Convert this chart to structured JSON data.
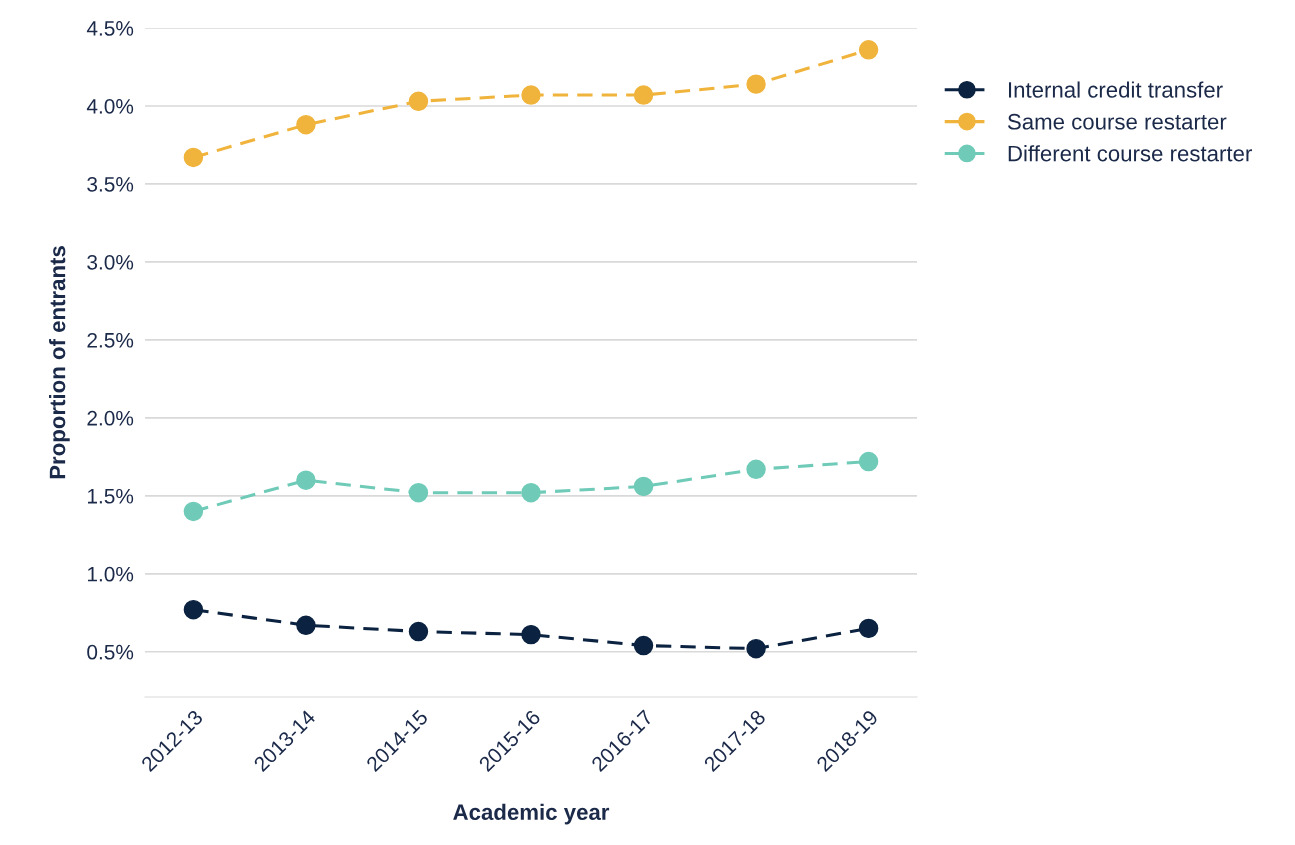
{
  "chart_data": {
    "type": "line",
    "xlabel": "Academic year",
    "ylabel": "Proportion of entrants",
    "categories": [
      "2012-13",
      "2013-14",
      "2014-15",
      "2015-16",
      "2016-17",
      "2017-18",
      "2018-19"
    ],
    "series": [
      {
        "name": "Internal credit transfer",
        "color": "#0b2341",
        "values": [
          0.77,
          0.67,
          0.63,
          0.61,
          0.54,
          0.52,
          0.65
        ]
      },
      {
        "name": "Same course restarter",
        "color": "#f0b43c",
        "values": [
          3.67,
          3.88,
          4.03,
          4.07,
          4.07,
          4.14,
          4.36
        ]
      },
      {
        "name": "Different course restarter",
        "color": "#6fcbb8",
        "values": [
          1.4,
          1.6,
          1.52,
          1.52,
          1.56,
          1.67,
          1.72
        ]
      }
    ],
    "ylim": [
      0.21,
      4.5
    ],
    "yticks": [
      {
        "value": 0.5,
        "label": "0.5%"
      },
      {
        "value": 1.0,
        "label": "1.0%"
      },
      {
        "value": 1.5,
        "label": "1.5%"
      },
      {
        "value": 2.0,
        "label": "2.0%"
      },
      {
        "value": 2.5,
        "label": "2.5%"
      },
      {
        "value": 3.0,
        "label": "3.0%"
      },
      {
        "value": 3.5,
        "label": "3.5%"
      },
      {
        "value": 4.0,
        "label": "4.0%"
      },
      {
        "value": 4.5,
        "label": "4.5%"
      }
    ],
    "grid": "y",
    "legend": "right",
    "marker": "circle",
    "line_style": "dashed"
  }
}
